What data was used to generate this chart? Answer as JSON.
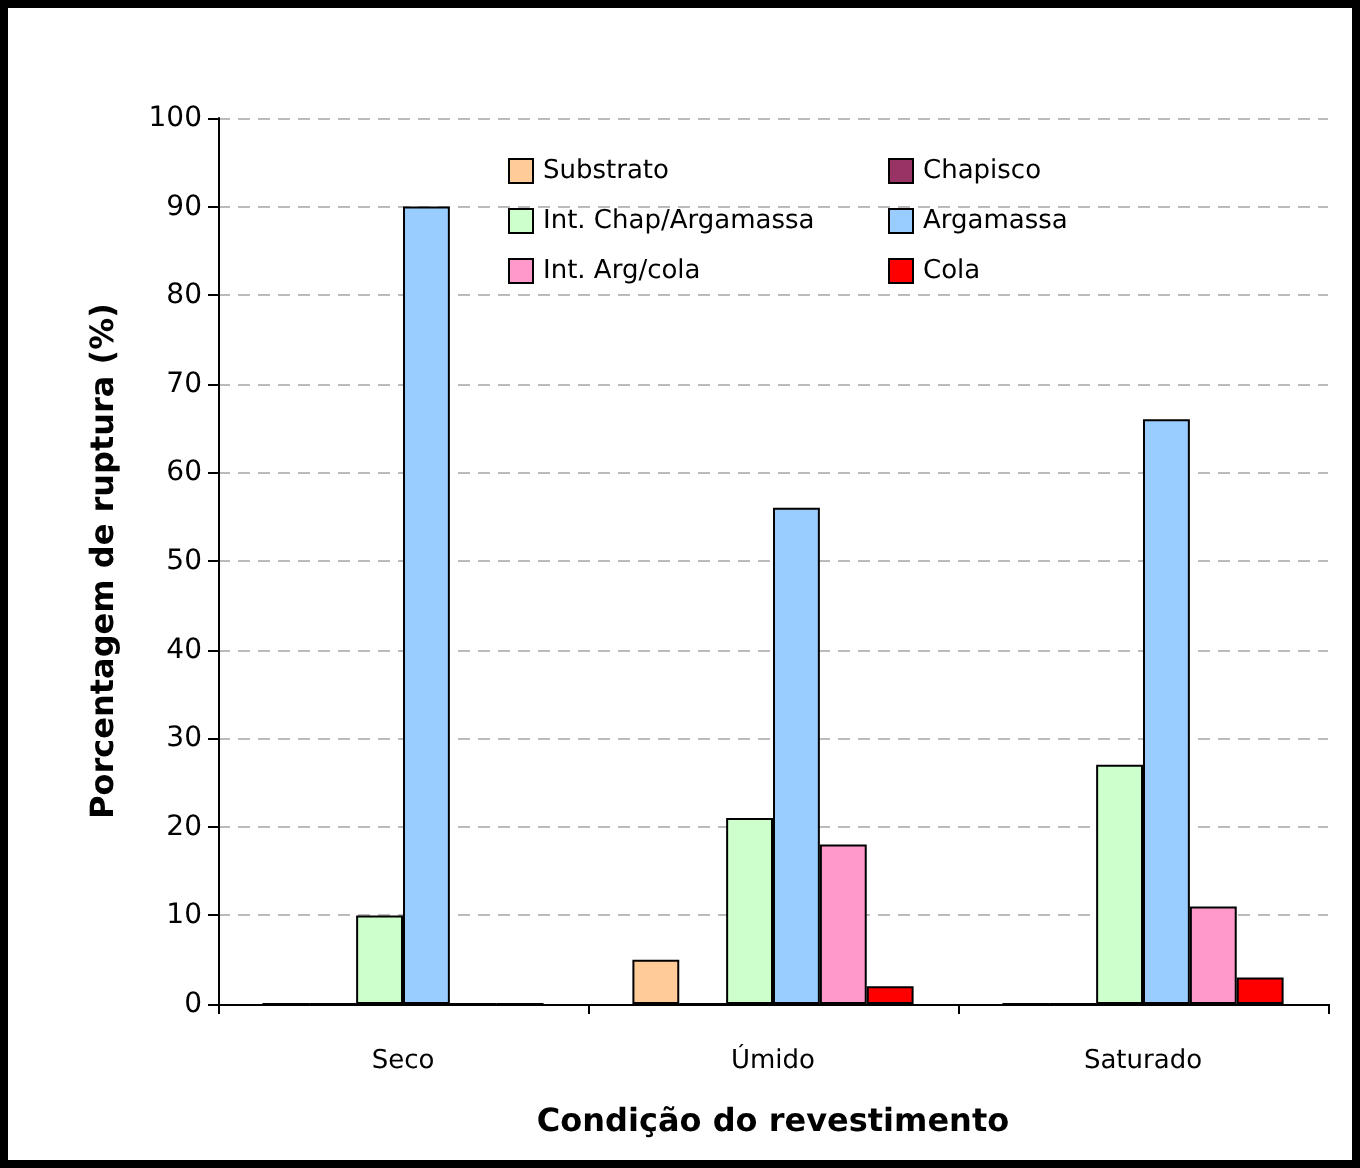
{
  "chart_data": {
    "type": "bar",
    "xlabel": "Condição do revestimento",
    "ylabel": "Porcentagem de ruptura (%)",
    "categories": [
      "Seco",
      "Úmido",
      "Saturado"
    ],
    "series": [
      {
        "name": "Substrato",
        "color": "#ffcc99",
        "values": [
          0,
          5,
          0
        ]
      },
      {
        "name": "Chapisco",
        "color": "#993366",
        "values": [
          0,
          0,
          0
        ]
      },
      {
        "name": "Int. Chap/Argamassa",
        "color": "#ccffcc",
        "values": [
          10,
          21,
          27
        ]
      },
      {
        "name": "Argamassa",
        "color": "#99ccff",
        "values": [
          90,
          56,
          66
        ]
      },
      {
        "name": "Int. Arg/cola",
        "color": "#ff99cc",
        "values": [
          0,
          18,
          11
        ]
      },
      {
        "name": "Cola",
        "color": "#ff0000",
        "values": [
          0,
          2,
          3
        ]
      }
    ],
    "ylim": [
      0,
      100
    ],
    "yticks": [
      0,
      10,
      20,
      30,
      40,
      50,
      60,
      70,
      80,
      90,
      100
    ],
    "grid": "y",
    "legend": "top"
  }
}
